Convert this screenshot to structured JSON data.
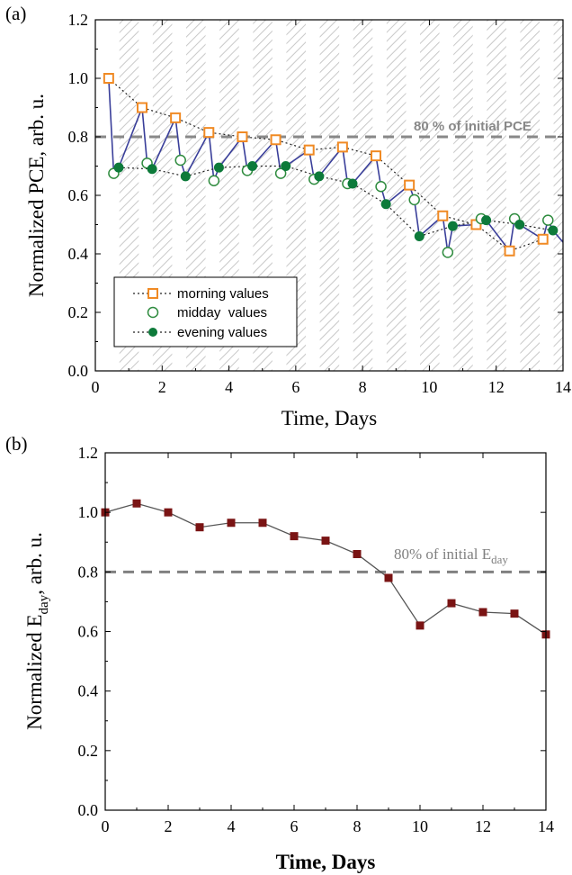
{
  "chart_data": [
    {
      "type": "line",
      "panel_label": "(a)",
      "xlabel": "Time, Days",
      "ylabel": "Normalized PCE, arb. u.",
      "xlim": [
        0,
        14
      ],
      "ylim": [
        0.0,
        1.2
      ],
      "x_ticks": [
        "0",
        "2",
        "4",
        "6",
        "8",
        "10",
        "12",
        "14"
      ],
      "y_ticks": [
        "0.0",
        "0.2",
        "0.4",
        "0.6",
        "0.8",
        "1.0",
        "1.2"
      ],
      "grid": false,
      "night_shading": "hatched bands",
      "reference_line": {
        "y": 0.8,
        "label": "80 % of initial PCE",
        "style": "dashed",
        "color": "#888888"
      },
      "legend": {
        "placement": "bottom-left",
        "entries": [
          "morning values",
          "midday  values",
          "evening values"
        ]
      },
      "colors": {
        "morning": "#f08a24",
        "midday": "#2e8b3e",
        "evening": "#0d7a3a",
        "connector": "#3a3f9a"
      },
      "series": [
        {
          "name": "morning values",
          "marker": "open-square",
          "x": [
            0.4,
            1.4,
            2.4,
            3.4,
            4.4,
            5.4,
            6.4,
            7.4,
            8.4,
            9.4,
            10.4,
            11.4,
            12.4,
            13.4
          ],
          "values": [
            1.0,
            0.9,
            0.865,
            0.815,
            0.8,
            0.79,
            0.755,
            0.765,
            0.735,
            0.635,
            0.53,
            0.5,
            0.41,
            0.45
          ]
        },
        {
          "name": "midday  values",
          "marker": "open-circle",
          "x": [
            0.55,
            1.55,
            2.55,
            3.55,
            4.55,
            5.55,
            6.55,
            7.55,
            8.55,
            9.55,
            10.55,
            11.55,
            12.55,
            13.55
          ],
          "values": [
            0.675,
            0.71,
            0.72,
            0.65,
            0.685,
            0.675,
            0.655,
            0.64,
            0.63,
            0.585,
            0.405,
            0.52,
            0.52,
            0.515
          ]
        },
        {
          "name": "evening values",
          "marker": "filled-circle",
          "x": [
            0.7,
            1.7,
            2.7,
            3.7,
            4.7,
            5.7,
            6.7,
            7.7,
            8.7,
            9.7,
            10.7,
            11.7,
            12.7,
            13.7
          ],
          "values": [
            0.695,
            0.69,
            0.665,
            0.695,
            0.7,
            0.7,
            0.665,
            0.64,
            0.57,
            0.46,
            0.495,
            0.515,
            0.5,
            0.48
          ]
        }
      ]
    },
    {
      "type": "line",
      "panel_label": "(b)",
      "xlabel": "Time, Days",
      "ylabel": "Normalized E",
      "ylabel_sub": "day",
      "ylabel_suffix": ", arb. u.",
      "xlim": [
        0,
        14
      ],
      "ylim": [
        0.0,
        1.2
      ],
      "x_ticks": [
        "0",
        "2",
        "4",
        "6",
        "8",
        "10",
        "12",
        "14"
      ],
      "y_ticks": [
        "0.0",
        "0.2",
        "0.4",
        "0.6",
        "0.8",
        "1.0",
        "1.2"
      ],
      "grid": false,
      "reference_line": {
        "y": 0.8,
        "label": "80% of initial E",
        "label_sub": "day",
        "style": "dashed",
        "color": "#808080"
      },
      "colors": {
        "marker": "#7a1414",
        "line": "#555555"
      },
      "series": [
        {
          "marker": "filled-square",
          "x": [
            0,
            1,
            2,
            3,
            4,
            5,
            6,
            7,
            8,
            9,
            10,
            11,
            12,
            13,
            14
          ],
          "values": [
            1.0,
            1.03,
            1.0,
            0.95,
            0.965,
            0.965,
            0.92,
            0.905,
            0.86,
            0.78,
            0.62,
            0.695,
            0.665,
            0.66,
            0.59
          ]
        }
      ]
    }
  ]
}
